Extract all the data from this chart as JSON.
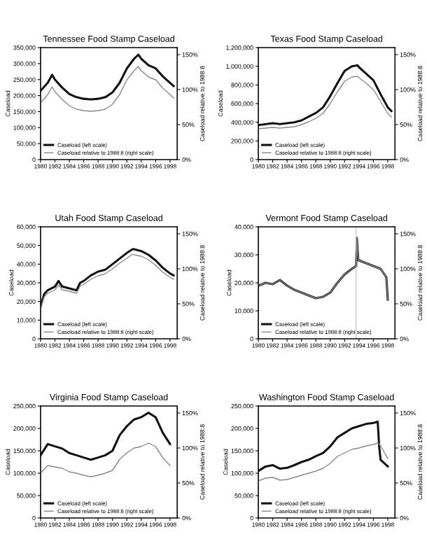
{
  "chart_data": [
    {
      "type": "line",
      "title": "Tennessee Food Stamp Caseload",
      "ylabel": "Caseload",
      "y2label": "Caseload relative to 1988:8",
      "legend": "bottom left",
      "xlim": [
        1980,
        1999
      ],
      "xticks": [
        1980,
        1982,
        1984,
        1986,
        1988,
        1990,
        1992,
        1994,
        1996,
        1998
      ],
      "ylim": [
        0,
        350000
      ],
      "yticks": [
        0,
        {
          "value": 50000,
          "label": "50,000"
        },
        {
          "value": 100000,
          "label": "100,000"
        },
        {
          "value": 150000,
          "label": "150,000"
        },
        {
          "value": 200000,
          "label": "200,000"
        },
        {
          "value": 250000,
          "label": "250,000"
        },
        {
          "value": 300000,
          "label": "300,000"
        },
        {
          "value": 350000,
          "label": "350,000"
        }
      ],
      "y2lim": [
        0,
        160
      ],
      "y2ticks": [
        {
          "value": 0,
          "label": "0%"
        },
        {
          "value": 50,
          "label": "50%"
        },
        {
          "value": 100,
          "label": "100%"
        },
        {
          "value": 150,
          "label": "150%"
        }
      ],
      "series": [
        {
          "name": "Caseload (left scale)",
          "color": "#111111",
          "x": [
            1980,
            1981,
            1981.6,
            1982,
            1983,
            1984,
            1985,
            1986,
            1987,
            1988,
            1989,
            1990,
            1991,
            1992,
            1993,
            1993.6,
            1994,
            1995,
            1996,
            1997,
            1998,
            1998.5
          ],
          "values": [
            215000,
            240000,
            265000,
            250000,
            225000,
            205000,
            195000,
            190000,
            188000,
            190000,
            195000,
            210000,
            240000,
            285000,
            315000,
            328000,
            315000,
            295000,
            285000,
            260000,
            240000,
            230000
          ]
        },
        {
          "name": "Caseload relative to 1988:8 (right scale)",
          "color": "#888888",
          "axis": "y2",
          "x": [
            1980,
            1981,
            1981.6,
            1982,
            1983,
            1984,
            1985,
            1986,
            1987,
            1988,
            1989,
            1990,
            1991,
            1992,
            1993,
            1993.6,
            1994,
            1995,
            1996,
            1997,
            1998,
            1998.5
          ],
          "values": [
            81,
            93,
            104,
            97,
            86,
            77,
            72,
            70,
            69,
            70,
            72,
            79,
            93,
            114,
            127,
            133,
            127,
            118,
            114,
            102,
            93,
            88
          ]
        }
      ]
    },
    {
      "type": "line",
      "title": "Texas Food Stamp Caseload",
      "ylabel": "Caseload",
      "y2label": "Caseload relative to 1988:8",
      "legend": "bottom left",
      "xlim": [
        1980,
        1999
      ],
      "xticks": [
        1980,
        1982,
        1984,
        1986,
        1988,
        1990,
        1992,
        1994,
        1996,
        1998
      ],
      "ylim": [
        0,
        1200000
      ],
      "yticks": [
        0,
        {
          "value": 200000,
          "label": "200,000"
        },
        {
          "value": 400000,
          "label": "400,000"
        },
        {
          "value": 600000,
          "label": "600,000"
        },
        {
          "value": 800000,
          "label": "800,000"
        },
        {
          "value": 1000000,
          "label": "1,000,000"
        },
        {
          "value": 1200000,
          "label": "1,200,000"
        }
      ],
      "y2lim": [
        0,
        160
      ],
      "y2ticks": [
        {
          "value": 0,
          "label": "0%"
        },
        {
          "value": 50,
          "label": "50%"
        },
        {
          "value": 100,
          "label": "100%"
        },
        {
          "value": 150,
          "label": "150%"
        }
      ],
      "series": [
        {
          "name": "Caseload (left scale)",
          "color": "#111111",
          "x": [
            1980,
            1982,
            1983,
            1984,
            1985,
            1986,
            1987,
            1988,
            1989,
            1990,
            1991,
            1992,
            1993,
            1993.8,
            1994,
            1995,
            1996,
            1997,
            1998,
            1998.5
          ],
          "values": [
            370000,
            390000,
            380000,
            390000,
            400000,
            420000,
            460000,
            500000,
            560000,
            680000,
            820000,
            950000,
            1000000,
            1010000,
            990000,
            920000,
            850000,
            700000,
            560000,
            520000
          ]
        },
        {
          "name": "Caseload relative to 1988:8 (right scale)",
          "color": "#888888",
          "axis": "y2",
          "x": [
            1980,
            1982,
            1983,
            1984,
            1985,
            1986,
            1987,
            1988,
            1989,
            1990,
            1991,
            1992,
            1993,
            1993.8,
            1994,
            1995,
            1996,
            1997,
            1998,
            1998.5
          ],
          "values": [
            44,
            46,
            45,
            46,
            47,
            50,
            54,
            59,
            66,
            80,
            97,
            112,
            118,
            119,
            117,
            109,
            100,
            83,
            66,
            61
          ]
        }
      ]
    },
    {
      "type": "line",
      "title": "Utah Food Stamp Caseload",
      "ylabel": "Caseload",
      "y2label": "Caseload relative to 1988:8",
      "legend": "bottom left",
      "xlim": [
        1980,
        1999
      ],
      "xticks": [
        1980,
        1982,
        1984,
        1986,
        1988,
        1990,
        1992,
        1994,
        1996,
        1998
      ],
      "ylim": [
        0,
        60000
      ],
      "yticks": [
        0,
        {
          "value": 10000,
          "label": "10,000"
        },
        {
          "value": 20000,
          "label": "20,000"
        },
        {
          "value": 30000,
          "label": "30,000"
        },
        {
          "value": 40000,
          "label": "40,000"
        },
        {
          "value": 50000,
          "label": "50,000"
        },
        {
          "value": 60000,
          "label": "60,000"
        }
      ],
      "y2lim": [
        0,
        160
      ],
      "y2ticks": [
        {
          "value": 0,
          "label": "0%"
        },
        {
          "value": 50,
          "label": "50%"
        },
        {
          "value": 100,
          "label": "100%"
        },
        {
          "value": 150,
          "label": "150%"
        }
      ],
      "series": [
        {
          "name": "Caseload (left scale)",
          "color": "#111111",
          "x": [
            1980,
            1980.5,
            1981,
            1982,
            1982.5,
            1983,
            1984,
            1985,
            1985.5,
            1986,
            1987,
            1988,
            1989,
            1990,
            1991,
            1992,
            1992.8,
            1993,
            1994,
            1995,
            1996,
            1997,
            1998,
            1998.5
          ],
          "values": [
            17000,
            24000,
            26000,
            28000,
            31000,
            28000,
            27000,
            26000,
            30000,
            31000,
            34000,
            36000,
            37000,
            40000,
            43000,
            46000,
            48000,
            48000,
            47000,
            45000,
            42000,
            38000,
            35000,
            34000
          ]
        },
        {
          "name": "Caseload relative to 1988:8 (right scale)",
          "color": "#888888",
          "axis": "y2",
          "x": [
            1980,
            1980.5,
            1981,
            1982,
            1982.5,
            1983,
            1984,
            1985,
            1985.5,
            1986,
            1987,
            1988,
            1989,
            1990,
            1991,
            1992,
            1992.8,
            1993,
            1994,
            1995,
            1996,
            1997,
            1998,
            1998.5
          ],
          "values": [
            43,
            60,
            65,
            70,
            77,
            70,
            68,
            65,
            75,
            78,
            85,
            90,
            93,
            100,
            108,
            115,
            121,
            120,
            118,
            113,
            105,
            95,
            88,
            85
          ]
        }
      ]
    },
    {
      "type": "line",
      "title": "Vermont Food Stamp Caseload",
      "ylabel": "Caseload",
      "y2label": "Caseload relative to 1988:8",
      "legend": "bottom left",
      "xlim": [
        1980,
        1999
      ],
      "xticks": [
        1980,
        1982,
        1984,
        1986,
        1988,
        1990,
        1992,
        1994,
        1996,
        1998
      ],
      "ylim": [
        0,
        40000
      ],
      "yticks": [
        0,
        {
          "value": 10000,
          "label": "10,000"
        },
        {
          "value": 20000,
          "label": "20,000"
        },
        {
          "value": 30000,
          "label": "30,000"
        },
        {
          "value": 40000,
          "label": "40,000"
        }
      ],
      "y2lim": [
        0,
        160
      ],
      "y2ticks": [
        {
          "value": 0,
          "label": "0%"
        },
        {
          "value": 50,
          "label": "50%"
        },
        {
          "value": 100,
          "label": "100%"
        },
        {
          "value": 150,
          "label": "150%"
        }
      ],
      "ref_lines": [
        {
          "axis": "x",
          "value": 1993.6,
          "color": "#bbbbbb"
        }
      ],
      "series": [
        {
          "name": "Caseload (left scale)",
          "color": "#111111",
          "x": [
            1980,
            1981,
            1982,
            1983,
            1983.5,
            1984,
            1985,
            1986,
            1987,
            1988,
            1989,
            1990,
            1991,
            1992,
            1993,
            1993.6,
            1993.7,
            1993.9,
            1994,
            1995,
            1996,
            1997,
            1997.8,
            1998
          ],
          "values": [
            19000,
            20000,
            19500,
            21000,
            20000,
            19000,
            17500,
            16500,
            15500,
            14500,
            15000,
            16500,
            20000,
            23000,
            25000,
            26000,
            36000,
            28000,
            28000,
            27000,
            26000,
            25000,
            22000,
            14000
          ]
        },
        {
          "name": "Caseload relative to 1988:8 (right scale)",
          "color": "#888888",
          "axis": "y2",
          "x": [
            1980,
            1981,
            1982,
            1983,
            1983.5,
            1984,
            1985,
            1986,
            1987,
            1988,
            1989,
            1990,
            1991,
            1992,
            1993,
            1993.6,
            1993.7,
            1993.9,
            1994,
            1995,
            1996,
            1997,
            1997.8,
            1998
          ],
          "values": [
            76,
            80,
            78,
            84,
            80,
            76,
            70,
            66,
            62,
            58,
            60,
            66,
            80,
            92,
            100,
            104,
            144,
            112,
            112,
            108,
            104,
            100,
            88,
            56
          ]
        }
      ]
    },
    {
      "type": "line",
      "title": "Virginia Food Stamp Caseload",
      "ylabel": "Caseload",
      "y2label": "Caseload relative to 1988:8",
      "legend": "bottom left",
      "xlim": [
        1980,
        1999
      ],
      "xticks": [
        1980,
        1982,
        1984,
        1986,
        1988,
        1990,
        1992,
        1994,
        1996,
        1998
      ],
      "ylim": [
        0,
        250000
      ],
      "yticks": [
        0,
        {
          "value": 50000,
          "label": "50,000"
        },
        {
          "value": 100000,
          "label": "100,000"
        },
        {
          "value": 150000,
          "label": "150,000"
        },
        {
          "value": 200000,
          "label": "200,000"
        },
        {
          "value": 250000,
          "label": "250,000"
        }
      ],
      "y2lim": [
        0,
        160
      ],
      "y2ticks": [
        {
          "value": 0,
          "label": "0%"
        },
        {
          "value": 50,
          "label": "50%"
        },
        {
          "value": 100,
          "label": "100%"
        },
        {
          "value": 150,
          "label": "150%"
        }
      ],
      "series": [
        {
          "name": "Caseload (left scale)",
          "color": "#111111",
          "x": [
            1980,
            1981,
            1982,
            1983,
            1984,
            1985,
            1986,
            1987,
            1988,
            1989,
            1990,
            1991,
            1992,
            1993,
            1994,
            1995,
            1996,
            1997,
            1998
          ],
          "values": [
            140000,
            165000,
            160000,
            155000,
            145000,
            140000,
            135000,
            130000,
            135000,
            140000,
            150000,
            185000,
            205000,
            220000,
            225000,
            235000,
            225000,
            190000,
            165000
          ]
        },
        {
          "name": "Caseload relative to 1988:8 (right scale)",
          "color": "#888888",
          "axis": "y2",
          "x": [
            1980,
            1981,
            1982,
            1983,
            1984,
            1985,
            1986,
            1987,
            1988,
            1989,
            1990,
            1991,
            1992,
            1993,
            1994,
            1995,
            1996,
            1997,
            1998
          ],
          "values": [
            64,
            75,
            73,
            71,
            66,
            64,
            61,
            59,
            61,
            64,
            68,
            84,
            93,
            100,
            102,
            107,
            102,
            86,
            75
          ]
        }
      ]
    },
    {
      "type": "line",
      "title": "Washington Food Stamp Caseload",
      "ylabel": "Caseload",
      "y2label": "Caseload relative to 1988:8",
      "legend": "bottom left",
      "xlim": [
        1980,
        1999
      ],
      "xticks": [
        1980,
        1982,
        1984,
        1986,
        1988,
        1990,
        1992,
        1994,
        1996,
        1998
      ],
      "ylim": [
        0,
        250000
      ],
      "yticks": [
        0,
        {
          "value": 50000,
          "label": "50,000"
        },
        {
          "value": 100000,
          "label": "100,000"
        },
        {
          "value": 150000,
          "label": "150,000"
        },
        {
          "value": 200000,
          "label": "200,000"
        },
        {
          "value": 250000,
          "label": "250,000"
        }
      ],
      "y2lim": [
        0,
        160
      ],
      "y2ticks": [
        {
          "value": 0,
          "label": "0%"
        },
        {
          "value": 50,
          "label": "50%"
        },
        {
          "value": 100,
          "label": "100%"
        },
        {
          "value": 150,
          "label": "150%"
        }
      ],
      "series": [
        {
          "name": "Caseload (left scale)",
          "color": "#111111",
          "x": [
            1980,
            1981,
            1982,
            1983,
            1984,
            1985,
            1986,
            1987,
            1988,
            1989,
            1990,
            1991,
            1992,
            1993,
            1994,
            1995,
            1996,
            1996.6,
            1996.8,
            1997,
            1998
          ],
          "values": [
            105000,
            115000,
            118000,
            110000,
            112000,
            118000,
            125000,
            130000,
            138000,
            145000,
            160000,
            180000,
            190000,
            200000,
            205000,
            210000,
            212000,
            215000,
            160000,
            130000,
            115000
          ]
        },
        {
          "name": "Caseload relative to 1988:8 (right scale)",
          "color": "#888888",
          "axis": "y2",
          "x": [
            1980,
            1981,
            1982,
            1983,
            1984,
            1985,
            1986,
            1987,
            1988,
            1989,
            1990,
            1991,
            1992,
            1993,
            1994,
            1995,
            1996,
            1996.6,
            1996.8,
            1997,
            1998
          ],
          "values": [
            53,
            57,
            58,
            54,
            55,
            58,
            61,
            64,
            67,
            71,
            78,
            88,
            93,
            98,
            100,
            103,
            105,
            107,
            106,
            103,
            85
          ]
        }
      ]
    }
  ]
}
